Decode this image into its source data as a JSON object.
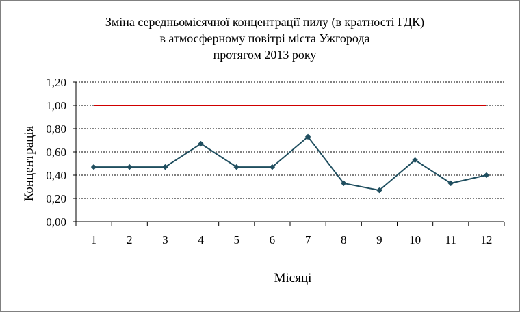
{
  "chart_data": {
    "type": "line",
    "title": [
      "Зміна середньомісячної концентрації пилу (в кратності ГДК)",
      "в атмосферному повітрі міста Ужгорода",
      "протягом 2013 року"
    ],
    "xlabel": "Місяці",
    "ylabel": "Концентрація",
    "categories": [
      "1",
      "2",
      "3",
      "4",
      "5",
      "6",
      "7",
      "8",
      "9",
      "10",
      "11",
      "12"
    ],
    "yticks": [
      "0,00",
      "0,20",
      "0,40",
      "0,60",
      "0,80",
      "1,00",
      "1,20"
    ],
    "ylim": [
      0,
      1.2
    ],
    "grid": true,
    "series": [
      {
        "values": [
          0.47,
          0.47,
          0.47,
          0.67,
          0.47,
          0.47,
          0.73,
          0.33,
          0.27,
          0.53,
          0.33,
          0.4
        ],
        "color": "#1F4E5F",
        "marker": "diamond"
      },
      {
        "values": [
          1.0,
          1.0,
          1.0,
          1.0,
          1.0,
          1.0,
          1.0,
          1.0,
          1.0,
          1.0,
          1.0,
          1.0
        ],
        "color": "#D00000",
        "marker": "none"
      }
    ]
  }
}
